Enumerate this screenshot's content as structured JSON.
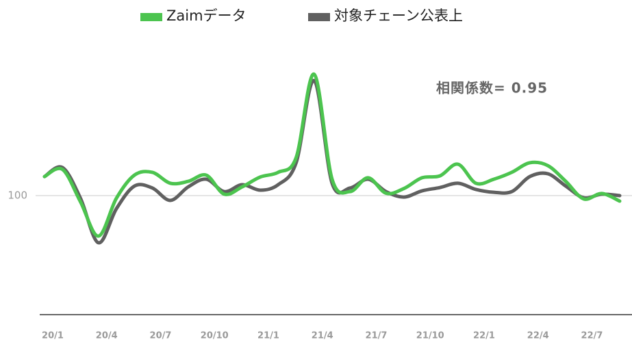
{
  "chart_data": {
    "type": "line",
    "annotation": "相関係数= 0.95",
    "categories": [
      "20/1",
      null,
      null,
      "20/4",
      null,
      null,
      "20/7",
      null,
      null,
      "20/10",
      null,
      null,
      "21/1",
      null,
      null,
      "21/4",
      null,
      null,
      "21/7",
      null,
      null,
      "21/10",
      null,
      null,
      "22/1",
      null,
      null,
      "22/4",
      null,
      null,
      "22/7",
      null,
      null
    ],
    "series": [
      {
        "name": "Zaimデータ",
        "color": "#4cc44f",
        "values": [
          108,
          111,
          97.4,
          83,
          98.9,
          108.6,
          109.8,
          105.2,
          106,
          108.6,
          100.6,
          103.7,
          107.8,
          109.8,
          116,
          151,
          106.9,
          101.7,
          107.5,
          101,
          103,
          107.5,
          108.3,
          113.2,
          105.2,
          106.9,
          109.8,
          113.8,
          112.6,
          106,
          98.6,
          100.9,
          97.7
        ]
      },
      {
        "name": "対象チェーン公表上",
        "color": "#606060",
        "values": [
          108,
          111.8,
          98.9,
          80.2,
          94.5,
          104,
          103.2,
          98,
          103.7,
          106.9,
          101.7,
          104.6,
          102.3,
          104.6,
          113.8,
          148.3,
          105.2,
          103.2,
          106.9,
          101.7,
          99.4,
          102,
          103.4,
          105.2,
          102.6,
          101.4,
          101.7,
          108,
          109.2,
          104,
          99.1,
          100.6,
          100
        ]
      }
    ],
    "ylim": [
      50,
      150
    ],
    "yticks": [
      100
    ],
    "grid": true
  }
}
